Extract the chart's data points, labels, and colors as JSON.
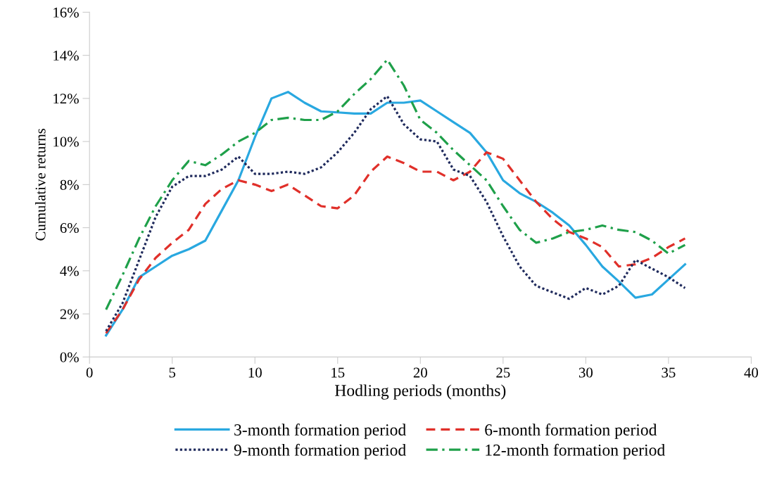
{
  "chart_data": {
    "type": "line",
    "xlabel": "Hodling periods (months)",
    "ylabel": "Cumulative returns",
    "x": [
      1,
      2,
      3,
      4,
      5,
      6,
      7,
      8,
      9,
      10,
      11,
      12,
      13,
      14,
      15,
      16,
      17,
      18,
      19,
      20,
      21,
      22,
      23,
      24,
      25,
      26,
      27,
      28,
      29,
      30,
      31,
      32,
      33,
      34,
      35,
      36
    ],
    "xlim": [
      0,
      40
    ],
    "xticks": [
      0,
      5,
      10,
      15,
      20,
      25,
      30,
      35,
      40
    ],
    "ylim": [
      0,
      16
    ],
    "yticks": [
      {
        "value": 0,
        "label": "0%"
      },
      {
        "value": 2,
        "label": "2%"
      },
      {
        "value": 4,
        "label": "4%"
      },
      {
        "value": 6,
        "label": "6%"
      },
      {
        "value": 8,
        "label": "8%"
      },
      {
        "value": 10,
        "label": "10%"
      },
      {
        "value": 12,
        "label": "12%"
      },
      {
        "value": 14,
        "label": "14%"
      },
      {
        "value": 16,
        "label": "16%"
      }
    ],
    "grid": false,
    "legend": "bottom",
    "marker": "none",
    "series": [
      {
        "name": "3-month formation period",
        "color": "#29a8e0",
        "line_style": "solid",
        "values": [
          1.0,
          2.2,
          3.7,
          4.2,
          4.7,
          5.0,
          5.4,
          6.8,
          8.2,
          10.2,
          12.0,
          12.3,
          11.8,
          11.4,
          11.35,
          11.3,
          11.3,
          11.8,
          11.8,
          11.9,
          11.4,
          10.9,
          10.4,
          9.5,
          8.2,
          7.6,
          7.2,
          6.7,
          6.1,
          5.2,
          4.2,
          3.5,
          2.75,
          2.9,
          3.6,
          4.3
        ]
      },
      {
        "name": "6-month formation period",
        "color": "#e0302a",
        "line_style": "dashed",
        "values": [
          1.1,
          2.2,
          3.6,
          4.6,
          5.3,
          5.9,
          7.1,
          7.8,
          8.2,
          8.0,
          7.7,
          8.0,
          7.5,
          7.0,
          6.9,
          7.5,
          8.6,
          9.3,
          9.0,
          8.6,
          8.6,
          8.2,
          8.6,
          9.5,
          9.2,
          8.2,
          7.2,
          6.4,
          5.8,
          5.5,
          5.1,
          4.2,
          4.3,
          4.6,
          5.1,
          5.5
        ]
      },
      {
        "name": "9-month formation period",
        "color": "#1f2a5c",
        "line_style": "dotted",
        "values": [
          1.2,
          2.5,
          4.5,
          6.5,
          7.9,
          8.4,
          8.4,
          8.7,
          9.3,
          8.5,
          8.5,
          8.6,
          8.5,
          8.8,
          9.5,
          10.4,
          11.5,
          12.1,
          10.8,
          10.1,
          10.0,
          8.7,
          8.4,
          7.2,
          5.6,
          4.2,
          3.3,
          3.0,
          2.7,
          3.2,
          2.9,
          3.3,
          4.5,
          4.1,
          3.7,
          3.2
        ]
      },
      {
        "name": "12-month formation period",
        "color": "#1fa04a",
        "line_style": "dashdot",
        "values": [
          2.2,
          3.8,
          5.5,
          7.0,
          8.2,
          9.1,
          8.9,
          9.4,
          10.0,
          10.4,
          11.0,
          11.1,
          11.0,
          11.0,
          11.4,
          12.2,
          12.9,
          13.8,
          12.6,
          11.0,
          10.4,
          9.6,
          8.9,
          8.2,
          7.0,
          5.9,
          5.3,
          5.5,
          5.8,
          5.9,
          6.1,
          5.9,
          5.8,
          5.4,
          4.8,
          5.2
        ]
      }
    ]
  }
}
